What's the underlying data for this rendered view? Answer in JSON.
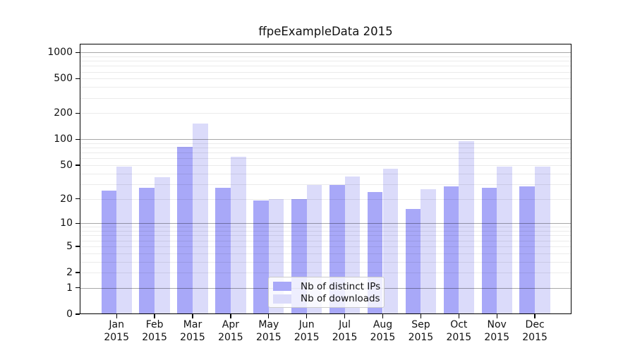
{
  "chart_data": {
    "type": "bar",
    "title": "ffpeExampleData 2015",
    "categories": [
      "Jan",
      "Feb",
      "Mar",
      "Apr",
      "May",
      "Jun",
      "Jul",
      "Aug",
      "Sep",
      "Oct",
      "Nov",
      "Dec"
    ],
    "x_tick_second_line": "2015",
    "series": [
      {
        "name": "Nb of distinct IPs",
        "color": "#a8a8f8",
        "values": [
          25,
          27,
          81,
          27,
          19,
          20,
          29,
          24,
          15,
          28,
          27,
          28
        ]
      },
      {
        "name": "Nb of downloads",
        "color": "#dbdbfa",
        "values": [
          48,
          36,
          152,
          63,
          20,
          29,
          37,
          45,
          26,
          95,
          48,
          48
        ]
      }
    ],
    "y_axis": {
      "scale": "log10(1+x)",
      "tick_values": [
        0,
        1,
        2,
        5,
        10,
        20,
        50,
        100,
        200,
        500,
        1000
      ],
      "major_grid_values": [
        1,
        10,
        100,
        1000
      ],
      "range_top": 1250
    },
    "legend": {
      "position": "lower-center"
    },
    "grid": {
      "major_color": "rgba(0,0,0,0.34)",
      "minor_color": "rgba(0,0,0,0.08)"
    },
    "axis_color": "#000000",
    "background_color": "#ffffff"
  }
}
